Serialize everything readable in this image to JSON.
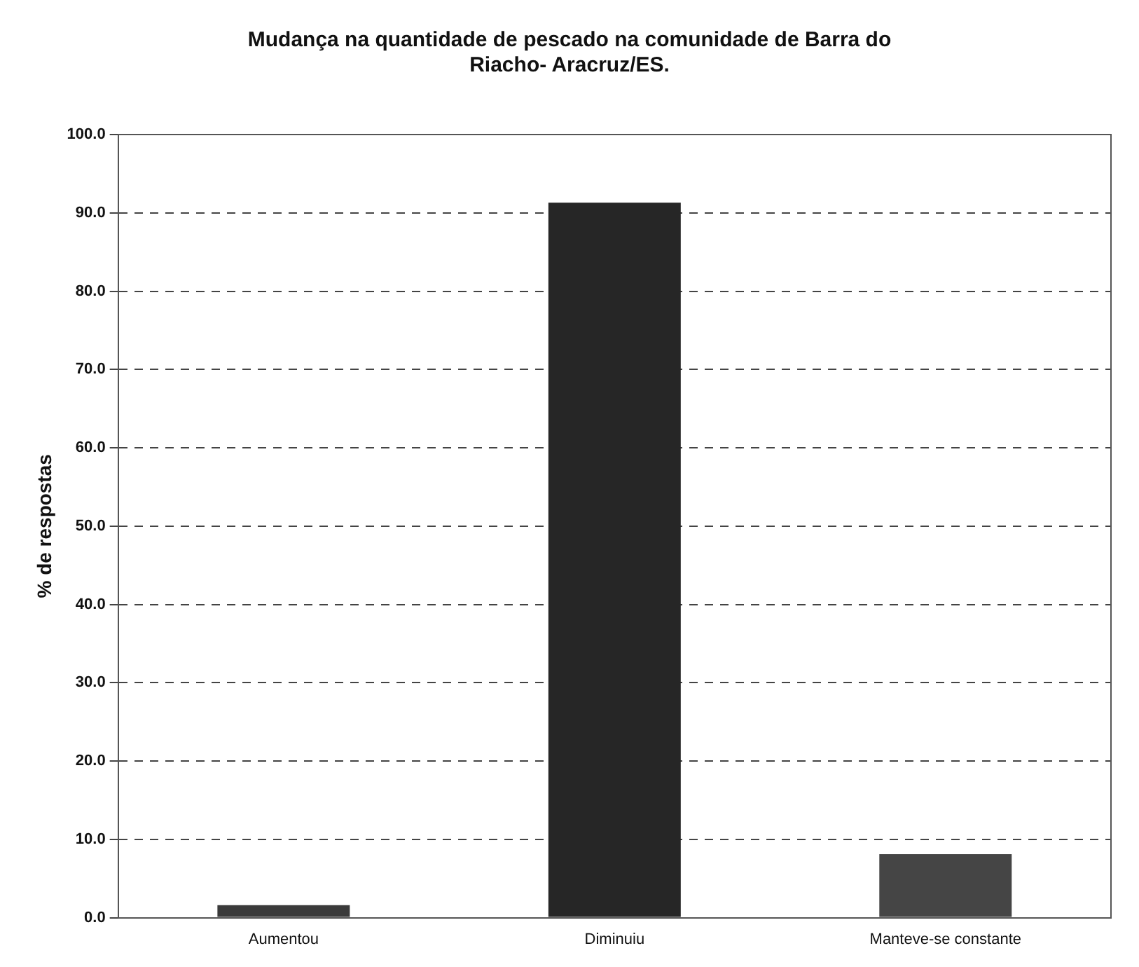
{
  "chart_data": {
    "type": "bar",
    "title": [
      "Mudança na quantidade de pescado na comunidade de Barra do",
      "Riacho- Aracruz/ES."
    ],
    "ylabel": "% de respostas",
    "categories": [
      "Aumentou",
      "Diminuiu",
      "Manteve-se constante"
    ],
    "values": [
      1.6,
      91.3,
      8.1
    ],
    "colors": [
      "#3a3a3a",
      "#262626",
      "#454545"
    ],
    "ylim": [
      0,
      100
    ],
    "yticks": [
      {
        "value": 0,
        "label": "0.0"
      },
      {
        "value": 10,
        "label": "10.0"
      },
      {
        "value": 20,
        "label": "20.0"
      },
      {
        "value": 30,
        "label": "30.0"
      },
      {
        "value": 40,
        "label": "40.0"
      },
      {
        "value": 50,
        "label": "50.0"
      },
      {
        "value": 60,
        "label": "60.0"
      },
      {
        "value": 70,
        "label": "70.0"
      },
      {
        "value": 80,
        "label": "80.0"
      },
      {
        "value": 90,
        "label": "90.0"
      },
      {
        "value": 100,
        "label": "100.0"
      }
    ],
    "grid": "y"
  }
}
